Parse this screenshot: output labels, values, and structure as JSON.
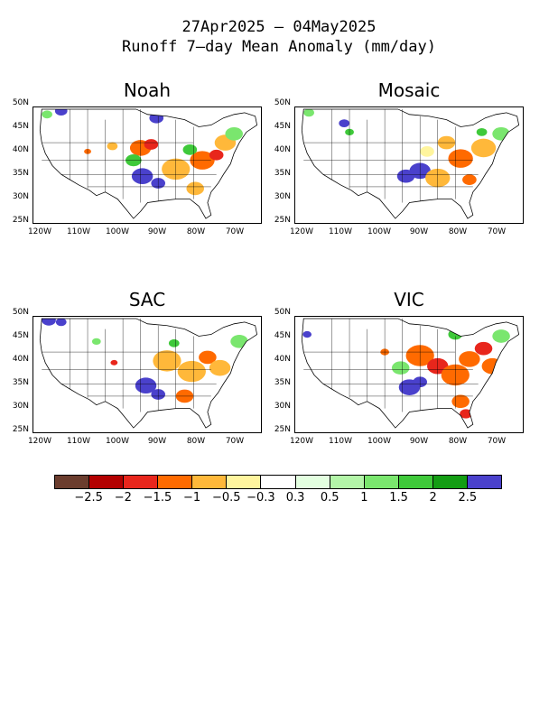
{
  "header": {
    "line1": "27Apr2025 – 04May2025",
    "line2": "Runoff 7–day Mean Anomaly (mm/day)"
  },
  "axes": {
    "lat_labels": [
      "50N",
      "45N",
      "40N",
      "35N",
      "30N",
      "25N"
    ],
    "lon_labels": [
      "120W",
      "110W",
      "100W",
      "90W",
      "80W",
      "70W"
    ]
  },
  "panels": [
    {
      "name": "Noah"
    },
    {
      "name": "Mosaic"
    },
    {
      "name": "SAC"
    },
    {
      "name": "VIC"
    }
  ],
  "colorbar": {
    "colors": [
      "#6b3d2e",
      "#b30000",
      "#e8261c",
      "#ff6a00",
      "#ffb83a",
      "#fff59e",
      "#ffffff",
      "#e3ffe0",
      "#b3f5a8",
      "#7ae66e",
      "#3fc93a",
      "#139d13",
      "#4a41cc"
    ],
    "labels": [
      "-2.5",
      "-2",
      "-1.5",
      "-1",
      "-0.5",
      "-0.3",
      "0.3",
      "0.5",
      "1",
      "1.5",
      "2",
      "2.5"
    ]
  }
}
